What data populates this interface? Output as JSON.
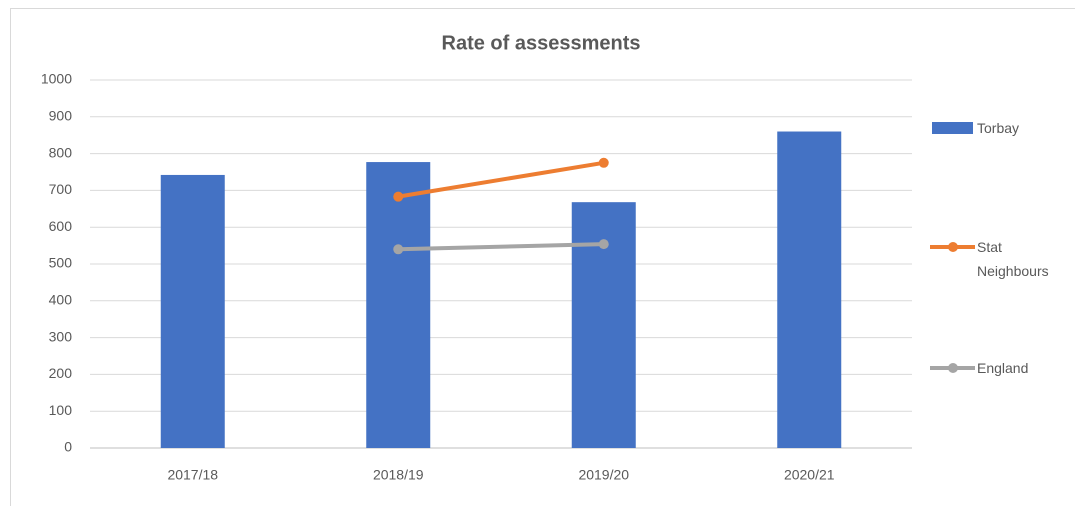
{
  "chart_data": {
    "type": "bar",
    "title": "Rate of assessments",
    "categories": [
      "2017/18",
      "2018/19",
      "2019/20",
      "2020/21"
    ],
    "series": [
      {
        "name": "Torbay",
        "type": "bar",
        "color": "#4472c4",
        "values": [
          742,
          777,
          668,
          860
        ]
      },
      {
        "name": "Stat Neighbours",
        "type": "line",
        "color": "#ed7d31",
        "values": [
          null,
          683,
          775,
          null
        ]
      },
      {
        "name": "England",
        "type": "line",
        "color": "#a5a5a5",
        "values": [
          null,
          540,
          554,
          null
        ]
      }
    ],
    "ylim": [
      0,
      1000
    ],
    "yticks": [
      0,
      100,
      200,
      300,
      400,
      500,
      600,
      700,
      800,
      900,
      1000
    ],
    "grid": true,
    "legend": "right"
  }
}
